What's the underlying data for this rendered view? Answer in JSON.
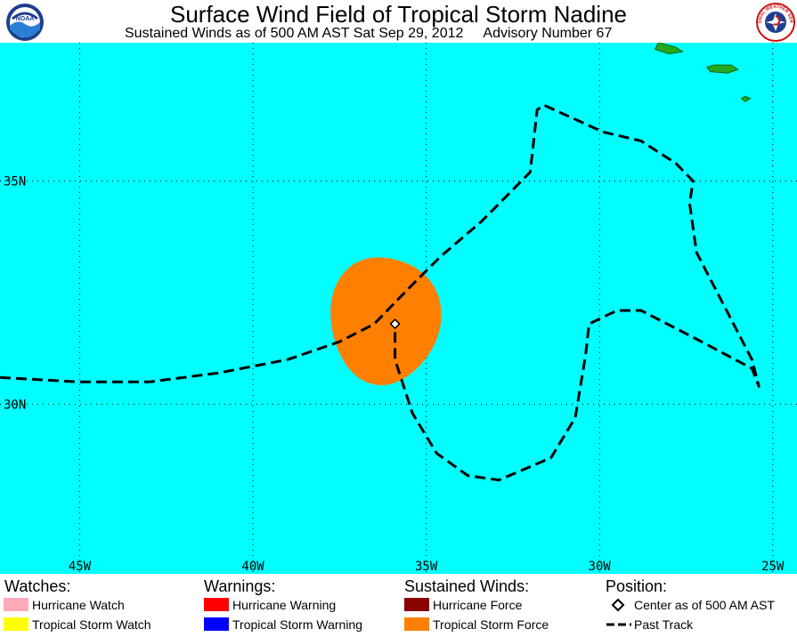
{
  "header": {
    "title": "Surface Wind Field of Tropical Storm Nadine",
    "subtitle": "Sustained Winds as of 500 AM AST Sat Sep 29, 2012",
    "advisory": "Advisory Number 67",
    "left_logo_text": "NOAA",
    "right_logo_text": "NATIONAL WEATHER SERVICE"
  },
  "map": {
    "ocean_color": "#00ffff",
    "land_color": "#22aa22",
    "lat_labels": [
      "35N",
      "30N"
    ],
    "lon_labels": [
      "45W",
      "40W",
      "35W",
      "30W",
      "25W"
    ],
    "lon_range_w": [
      47.3,
      24.3
    ],
    "lat_range_n": [
      26.2,
      38.1
    ],
    "gridlines": true,
    "storm": {
      "name": "Nadine",
      "center": {
        "lon_w": 35.9,
        "lat_n": 31.8
      },
      "tropical_storm_force_radius_deg": 1.55,
      "tropical_storm_force_color": "#ff8000"
    },
    "past_track": [
      [
        47.3,
        30.6
      ],
      [
        45.0,
        30.5
      ],
      [
        43.0,
        30.5
      ],
      [
        41.0,
        30.7
      ],
      [
        39.0,
        31.0
      ],
      [
        37.5,
        31.4
      ],
      [
        36.5,
        31.8
      ],
      [
        35.5,
        32.6
      ],
      [
        34.6,
        33.3
      ],
      [
        33.4,
        34.1
      ],
      [
        32.0,
        35.2
      ],
      [
        31.8,
        36.6
      ],
      [
        31.6,
        36.7
      ],
      [
        29.9,
        36.1
      ],
      [
        28.8,
        35.9
      ],
      [
        27.8,
        35.4
      ],
      [
        27.3,
        35.0
      ],
      [
        27.4,
        34.5
      ],
      [
        27.2,
        33.4
      ],
      [
        26.6,
        32.5
      ],
      [
        25.6,
        31.0
      ],
      [
        25.4,
        30.4
      ],
      [
        25.6,
        30.8
      ],
      [
        27.3,
        31.5
      ],
      [
        28.8,
        32.1
      ],
      [
        29.5,
        32.1
      ],
      [
        30.3,
        31.8
      ],
      [
        30.4,
        31.1
      ],
      [
        30.7,
        29.7
      ],
      [
        31.4,
        28.8
      ],
      [
        32.9,
        28.3
      ],
      [
        33.8,
        28.4
      ],
      [
        34.7,
        28.9
      ],
      [
        35.4,
        29.8
      ],
      [
        35.9,
        31.0
      ],
      [
        35.9,
        31.8
      ]
    ],
    "islands": [
      [
        [
          28.3,
          38.1
        ],
        [
          27.8,
          38.0
        ],
        [
          27.6,
          37.9
        ],
        [
          28.0,
          37.85
        ],
        [
          28.4,
          37.95
        ]
      ],
      [
        [
          26.9,
          37.55
        ],
        [
          26.7,
          37.6
        ],
        [
          26.2,
          37.6
        ],
        [
          26.0,
          37.5
        ],
        [
          26.3,
          37.42
        ],
        [
          26.8,
          37.45
        ]
      ],
      [
        [
          25.9,
          36.85
        ],
        [
          25.8,
          36.9
        ],
        [
          25.65,
          36.85
        ],
        [
          25.8,
          36.78
        ]
      ]
    ]
  },
  "legend": {
    "watches": {
      "heading": "Watches:",
      "items": [
        {
          "label": "Hurricane Watch",
          "color": "#ffaabb"
        },
        {
          "label": "Tropical Storm Watch",
          "color": "#ffff00"
        }
      ]
    },
    "warnings": {
      "heading": "Warnings:",
      "items": [
        {
          "label": "Hurricane Warning",
          "color": "#ff0000"
        },
        {
          "label": "Tropical Storm Warning",
          "color": "#0000ff"
        }
      ]
    },
    "winds": {
      "heading": "Sustained Winds:",
      "items": [
        {
          "label": "Hurricane Force",
          "color": "#880000"
        },
        {
          "label": "Tropical Storm Force",
          "color": "#ff8000"
        }
      ]
    },
    "position": {
      "heading": "Position:",
      "center_label": "Center as of 500 AM AST",
      "track_label": "Past Track"
    }
  }
}
